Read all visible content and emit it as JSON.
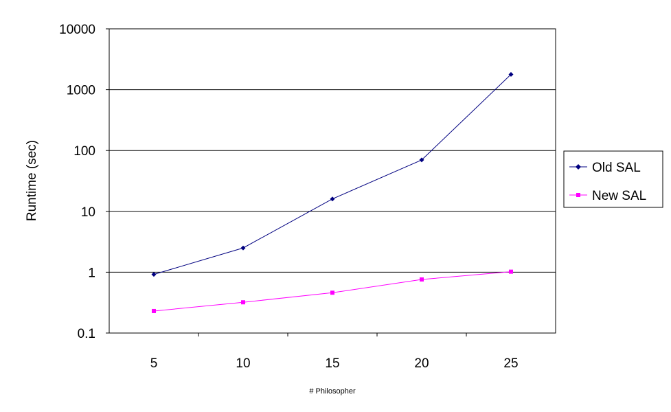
{
  "chart_data": {
    "type": "line",
    "title": "",
    "xlabel": "# Philosopher",
    "ylabel": "Runtime (sec)",
    "categories": [
      "5",
      "10",
      "15",
      "20",
      "25"
    ],
    "y_scale": "log",
    "ylim": [
      0.1,
      10000
    ],
    "y_ticks": [
      "0.1",
      "1",
      "10",
      "100",
      "1000",
      "10000"
    ],
    "grid": "horizontal major gridlines",
    "legend_position": "right",
    "series": [
      {
        "name": "Old SAL",
        "values": [
          0.92,
          2.5,
          16,
          70,
          1780
        ],
        "color": "#000080",
        "marker": "diamond"
      },
      {
        "name": "New SAL",
        "values": [
          0.23,
          0.32,
          0.46,
          0.76,
          1.02
        ],
        "color": "#ff00ff",
        "marker": "square"
      }
    ]
  }
}
